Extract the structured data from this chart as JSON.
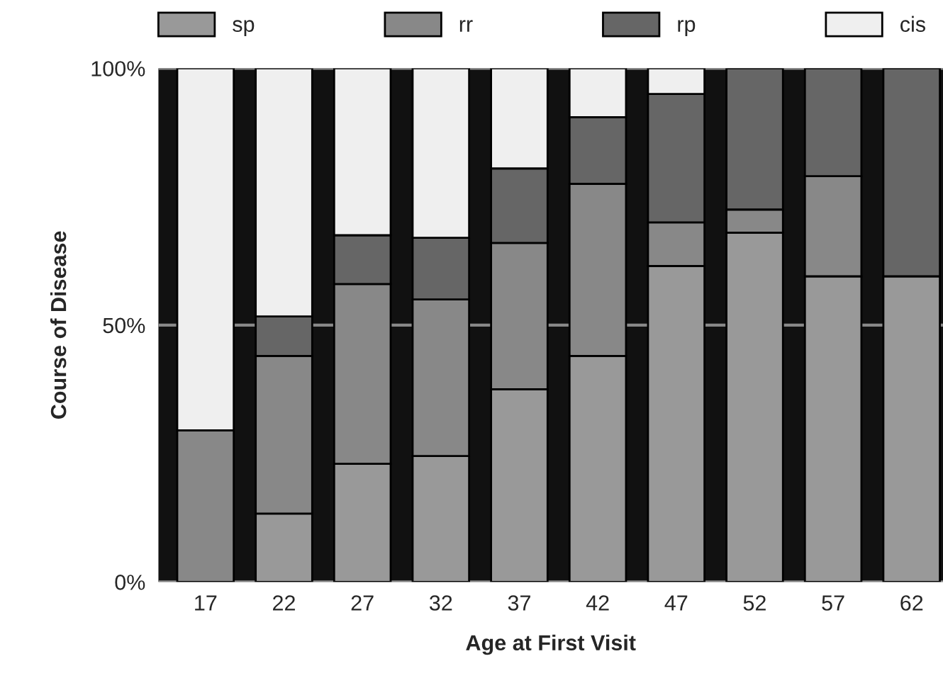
{
  "chart_data": {
    "type": "bar",
    "stacked": true,
    "xlabel": "Age at First Visit",
    "ylabel": "Course of Disease",
    "categories": [
      "17",
      "22",
      "27",
      "32",
      "37",
      "42",
      "47",
      "52",
      "57",
      "62"
    ],
    "series": [
      {
        "name": "sp",
        "color": "#999999",
        "values": [
          0,
          13.3,
          23,
          24.5,
          37.5,
          44,
          61.5,
          68,
          59.5,
          59.5
        ]
      },
      {
        "name": "rr",
        "color": "#888888",
        "values": [
          29.5,
          30.7,
          35,
          30.5,
          28.5,
          33.5,
          8.5,
          4.5,
          19.5,
          0
        ]
      },
      {
        "name": "rp",
        "color": "#666666",
        "values": [
          0,
          7.7,
          9.5,
          12,
          14.5,
          13,
          25,
          27.5,
          21,
          40.5
        ]
      },
      {
        "name": "cis",
        "color": "#efefef",
        "values": [
          70.5,
          48.3,
          32.5,
          33,
          19.5,
          9.5,
          5,
          0,
          0,
          0
        ]
      }
    ],
    "ylim": [
      0,
      100
    ],
    "yticks": [
      {
        "value": 0,
        "label": "0%"
      },
      {
        "value": 50,
        "label": "50%"
      },
      {
        "value": 100,
        "label": "100%"
      }
    ],
    "grid": "y",
    "legend": "top"
  }
}
